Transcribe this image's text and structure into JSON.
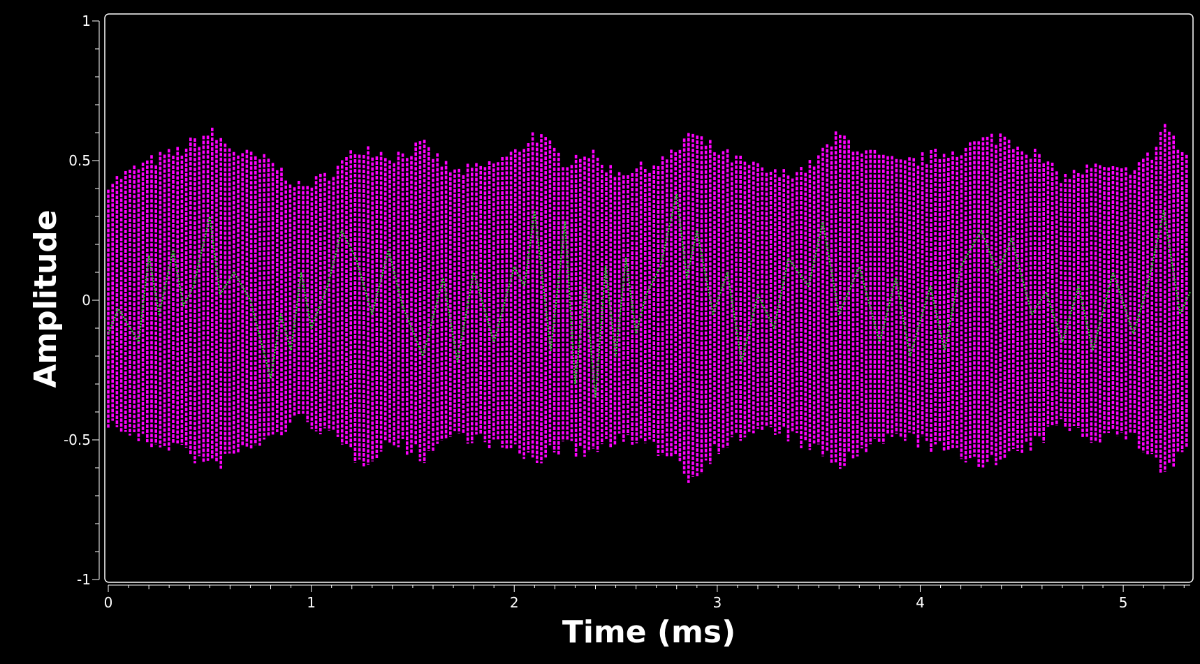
{
  "chart_data": {
    "type": "line",
    "title": "",
    "xlabel": "Time (ms)",
    "ylabel": "Amplitude",
    "xlim": [
      0,
      5.33
    ],
    "ylim": [
      -1,
      1
    ],
    "x_ticks": [
      0,
      1,
      2,
      3,
      4,
      5
    ],
    "x_tick_labels": [
      "0",
      "1",
      "2",
      "3",
      "4",
      "5"
    ],
    "y_ticks": [
      1,
      0.5,
      0,
      -0.5,
      -1
    ],
    "y_tick_labels": [
      "1",
      "0.5",
      "0",
      "-0.5",
      "-1"
    ],
    "grid": false,
    "background": "#000000",
    "axis_color": "#ffffff",
    "series": [
      {
        "role": "signal",
        "color": "#ff00ff",
        "style": "dotted vertical sample segments",
        "dense": true,
        "upper_envelope": {
          "x": [
            0.0,
            0.2,
            0.35,
            0.5,
            0.65,
            0.8,
            0.95,
            1.1,
            1.25,
            1.4,
            1.55,
            1.7,
            1.85,
            2.0,
            2.1,
            2.25,
            2.35,
            2.5,
            2.65,
            2.8,
            2.85,
            3.0,
            3.15,
            3.3,
            3.45,
            3.6,
            3.75,
            3.9,
            4.05,
            4.2,
            4.4,
            4.55,
            4.7,
            4.85,
            5.0,
            5.15,
            5.2,
            5.33
          ],
          "y": [
            0.44,
            0.52,
            0.56,
            0.63,
            0.55,
            0.52,
            0.42,
            0.48,
            0.58,
            0.54,
            0.58,
            0.48,
            0.5,
            0.55,
            0.63,
            0.52,
            0.56,
            0.48,
            0.5,
            0.55,
            0.63,
            0.56,
            0.51,
            0.47,
            0.5,
            0.62,
            0.55,
            0.51,
            0.54,
            0.57,
            0.62,
            0.56,
            0.46,
            0.5,
            0.48,
            0.55,
            0.67,
            0.5
          ]
        },
        "lower_envelope": {
          "x": [
            0.0,
            0.2,
            0.35,
            0.5,
            0.65,
            0.8,
            0.95,
            1.1,
            1.25,
            1.4,
            1.55,
            1.7,
            1.85,
            2.0,
            2.1,
            2.25,
            2.35,
            2.5,
            2.65,
            2.8,
            2.85,
            3.0,
            3.15,
            3.3,
            3.45,
            3.6,
            3.75,
            3.9,
            4.05,
            4.2,
            4.4,
            4.55,
            4.7,
            4.85,
            5.0,
            5.15,
            5.2,
            5.33
          ],
          "y": [
            -0.46,
            -0.54,
            -0.55,
            -0.63,
            -0.57,
            -0.52,
            -0.44,
            -0.51,
            -0.61,
            -0.53,
            -0.59,
            -0.5,
            -0.53,
            -0.57,
            -0.6,
            -0.55,
            -0.58,
            -0.52,
            -0.55,
            -0.58,
            -0.68,
            -0.56,
            -0.5,
            -0.49,
            -0.55,
            -0.62,
            -0.56,
            -0.5,
            -0.55,
            -0.59,
            -0.61,
            -0.55,
            -0.46,
            -0.52,
            -0.5,
            -0.58,
            -0.66,
            -0.53
          ]
        }
      },
      {
        "role": "smoothed",
        "color": "#33cc33",
        "style": "dotted line",
        "x": [
          0.0,
          0.05,
          0.15,
          0.2,
          0.25,
          0.32,
          0.37,
          0.42,
          0.5,
          0.55,
          0.62,
          0.7,
          0.8,
          0.85,
          0.9,
          0.95,
          1.0,
          1.08,
          1.15,
          1.22,
          1.3,
          1.38,
          1.45,
          1.55,
          1.65,
          1.72,
          1.8,
          1.9,
          2.0,
          2.05,
          2.1,
          2.18,
          2.25,
          2.3,
          2.35,
          2.4,
          2.45,
          2.5,
          2.55,
          2.6,
          2.65,
          2.72,
          2.8,
          2.85,
          2.9,
          2.98,
          3.05,
          3.12,
          3.2,
          3.28,
          3.35,
          3.45,
          3.52,
          3.6,
          3.7,
          3.8,
          3.88,
          3.95,
          4.05,
          4.12,
          4.2,
          4.3,
          4.38,
          4.45,
          4.55,
          4.62,
          4.7,
          4.78,
          4.85,
          4.95,
          5.05,
          5.12,
          5.2,
          5.28,
          5.33
        ],
        "y": [
          -0.12,
          -0.03,
          -0.15,
          0.16,
          -0.05,
          0.18,
          -0.02,
          0.05,
          0.3,
          0.02,
          0.1,
          0.0,
          -0.28,
          -0.05,
          -0.18,
          0.1,
          -0.1,
          0.05,
          0.25,
          0.15,
          -0.05,
          0.18,
          -0.02,
          -0.2,
          0.08,
          -0.22,
          0.1,
          -0.15,
          0.12,
          0.05,
          0.32,
          -0.18,
          0.28,
          -0.3,
          0.05,
          -0.35,
          0.12,
          -0.2,
          0.15,
          -0.12,
          0.02,
          0.12,
          0.38,
          0.08,
          0.25,
          -0.05,
          0.1,
          -0.22,
          0.02,
          -0.1,
          0.15,
          0.05,
          0.28,
          -0.05,
          0.12,
          -0.15,
          0.08,
          -0.2,
          0.05,
          -0.18,
          0.12,
          0.25,
          0.1,
          0.22,
          -0.05,
          0.03,
          -0.15,
          0.05,
          -0.18,
          0.1,
          -0.12,
          0.05,
          0.32,
          -0.05,
          0.03
        ]
      }
    ]
  }
}
